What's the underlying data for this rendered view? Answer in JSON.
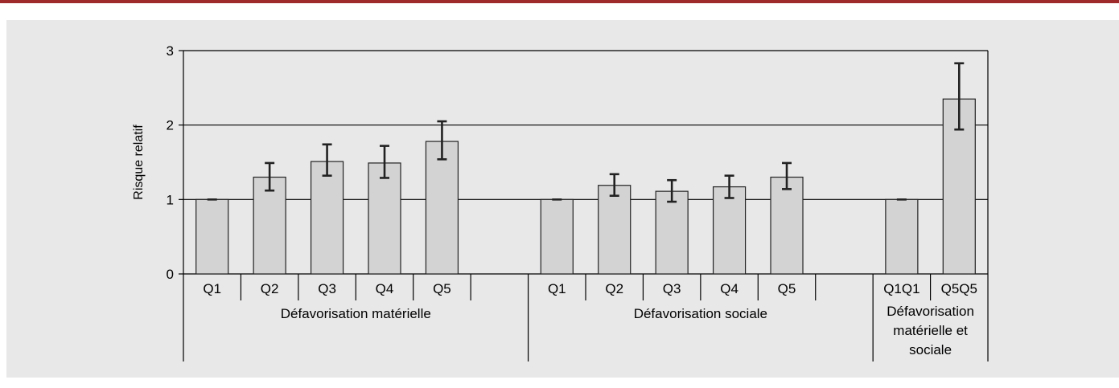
{
  "chart_data": {
    "type": "bar",
    "ylabel": "Risque relatif",
    "ylim": [
      0,
      3
    ],
    "yticks": [
      0,
      1,
      2,
      3
    ],
    "gridlines": true,
    "groups": [
      {
        "label": "Défavorisation matérielle",
        "categories": [
          "Q1",
          "Q2",
          "Q3",
          "Q4",
          "Q5"
        ],
        "values": [
          1.0,
          1.3,
          1.51,
          1.49,
          1.78
        ],
        "ci_low": [
          1.0,
          1.12,
          1.32,
          1.29,
          1.54
        ],
        "ci_high": [
          1.0,
          1.49,
          1.74,
          1.72,
          2.05
        ]
      },
      {
        "label": "Défavorisation sociale",
        "categories": [
          "Q1",
          "Q2",
          "Q3",
          "Q4",
          "Q5"
        ],
        "values": [
          1.0,
          1.19,
          1.11,
          1.17,
          1.3
        ],
        "ci_low": [
          1.0,
          1.05,
          0.97,
          1.02,
          1.14
        ],
        "ci_high": [
          1.0,
          1.34,
          1.26,
          1.32,
          1.49
        ]
      },
      {
        "label": "Défavorisation matérielle et sociale",
        "categories": [
          "Q1Q1",
          "Q5Q5"
        ],
        "values": [
          1.0,
          2.35
        ],
        "ci_low": [
          1.0,
          1.94
        ],
        "ci_high": [
          1.0,
          2.83
        ]
      }
    ],
    "colors": {
      "bar_fill": "#d3d3d3",
      "bar_stroke": "#222222",
      "panel_bg": "#e8e8e9",
      "top_rule": "#9e2a2b"
    }
  }
}
